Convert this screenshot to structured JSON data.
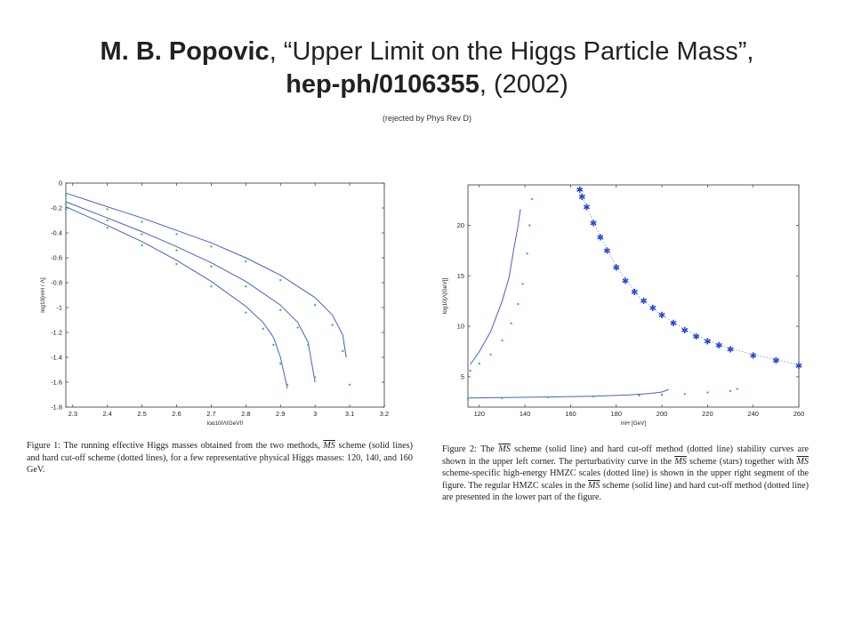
{
  "title": {
    "author": "M. B. Popovic",
    "sep1": ", “",
    "paper_title": "Upper Limit on the Higgs Particle Mass",
    "sep2": "”,",
    "arxiv_id": "hep-ph/0106355",
    "year": ", (2002)",
    "note": "(rejected by Phys Rev D)"
  },
  "figure1": {
    "caption_label": "Figure 1:",
    "caption_pre": "The running effective Higgs masses obtained from the two methods,",
    "caption_ms": "MS",
    "caption_post": "scheme (solid lines) and hard cut-off scheme (dotted lines), for a few representative physical Higgs masses: 120, 140, and 160 GeV.",
    "chart_data": {
      "type": "line",
      "xlabel": "log10[Λ[GeV]]",
      "ylabel": "log10[mH / Λ]",
      "xlim": [
        2.28,
        3.2
      ],
      "ylim": [
        -1.8,
        0
      ],
      "xticks": [
        "2.3",
        "2.4",
        "2.5",
        "2.6",
        "2.7",
        "2.8",
        "2.9",
        "3",
        "3.1",
        "3.2"
      ],
      "yticks": [
        "0",
        "-0.2",
        "-0.4",
        "-0.6",
        "-0.8",
        "-1",
        "-1.2",
        "-1.4",
        "-1.6",
        "-1.8"
      ],
      "grid": false,
      "series": [
        {
          "style": "solid",
          "color": "#4a5fc1",
          "x": [
            2.28,
            2.4,
            2.5,
            2.6,
            2.7,
            2.8,
            2.85,
            2.88,
            2.9,
            2.92
          ],
          "y": [
            -0.19,
            -0.34,
            -0.47,
            -0.62,
            -0.79,
            -0.99,
            -1.12,
            -1.24,
            -1.4,
            -1.65
          ]
        },
        {
          "style": "dotted",
          "color": "#2ecc40",
          "x": [
            2.28,
            2.4,
            2.5,
            2.6,
            2.7,
            2.8,
            2.85,
            2.88,
            2.9,
            2.92
          ],
          "y": [
            -0.21,
            -0.36,
            -0.5,
            -0.65,
            -0.83,
            -1.04,
            -1.17,
            -1.3,
            -1.45,
            -1.62
          ]
        },
        {
          "style": "solid",
          "color": "#4a5fc1",
          "x": [
            2.28,
            2.4,
            2.5,
            2.6,
            2.7,
            2.8,
            2.9,
            2.95,
            2.98,
            3.0
          ],
          "y": [
            -0.15,
            -0.28,
            -0.39,
            -0.51,
            -0.64,
            -0.79,
            -0.98,
            -1.12,
            -1.28,
            -1.6
          ]
        },
        {
          "style": "dotted",
          "color": "#2ecc40",
          "x": [
            2.28,
            2.4,
            2.5,
            2.6,
            2.7,
            2.8,
            2.9,
            2.95,
            2.98,
            3.0
          ],
          "y": [
            -0.17,
            -0.3,
            -0.41,
            -0.54,
            -0.67,
            -0.83,
            -1.02,
            -1.16,
            -1.3,
            -1.56
          ]
        },
        {
          "style": "solid",
          "color": "#4a5fc1",
          "x": [
            2.28,
            2.4,
            2.5,
            2.6,
            2.7,
            2.8,
            2.9,
            3.0,
            3.05,
            3.08,
            3.09
          ],
          "y": [
            -0.08,
            -0.19,
            -0.28,
            -0.38,
            -0.48,
            -0.6,
            -0.74,
            -0.92,
            -1.06,
            -1.22,
            -1.4
          ]
        },
        {
          "style": "dotted",
          "color": "#2ecc40",
          "x": [
            2.28,
            2.4,
            2.5,
            2.6,
            2.7,
            2.8,
            2.9,
            3.0,
            3.05,
            3.08,
            3.1
          ],
          "y": [
            -0.1,
            -0.21,
            -0.31,
            -0.41,
            -0.51,
            -0.63,
            -0.78,
            -0.98,
            -1.14,
            -1.35,
            -1.62
          ]
        }
      ]
    }
  },
  "figure2": {
    "caption_label": "Figure 2:",
    "caption_part1": "The",
    "caption_ms1": "MS",
    "caption_part2": "scheme (solid line) and hard cut-off method (dotted line) stability curves are shown in the upper left corner. The perturbativity curve in the",
    "caption_ms2": "MS",
    "caption_part3": "scheme (stars) together with",
    "caption_ms3": "MS",
    "caption_part4": "scheme-specific high-energy HMZC scales (dotted line) is shown in the upper right segment of the figure. The regular HMZC scales in the",
    "caption_ms4": "MS",
    "caption_part5": "scheme (solid line) and hard cut-off method (dotted line) are presented in the lower part of the figure.",
    "chart_data": {
      "type": "line",
      "xlabel": "mH [GeV]",
      "ylabel": "log10[Λ[GeV]]",
      "xlim": [
        115,
        260
      ],
      "ylim": [
        2,
        24
      ],
      "xticks": [
        "120",
        "140",
        "160",
        "180",
        "200",
        "220",
        "240",
        "260"
      ],
      "yticks": [
        "5",
        "10",
        "15",
        "20"
      ],
      "grid": false,
      "series": [
        {
          "style": "solid",
          "color": "#4a5fc1",
          "x": [
            116,
            120,
            125,
            130,
            133,
            135,
            137,
            138
          ],
          "y": [
            6.2,
            7.5,
            9.5,
            12.5,
            14.8,
            17.5,
            20,
            21.6
          ]
        },
        {
          "style": "dotted",
          "color": "#2ecc40",
          "x": [
            116,
            120,
            125,
            130,
            134,
            137,
            139,
            141,
            142,
            143
          ],
          "y": [
            5.6,
            6.3,
            7.2,
            8.6,
            10.3,
            12.2,
            14.2,
            17.2,
            20,
            22.6
          ]
        },
        {
          "style": "stars",
          "color": "#1f3fd6",
          "x": [
            164,
            165,
            167,
            170,
            173,
            176,
            180,
            184,
            188,
            192,
            196,
            200,
            205,
            210,
            215,
            220,
            225,
            230,
            240,
            250,
            260
          ],
          "y": [
            23.5,
            22.8,
            21.8,
            20.2,
            18.8,
            17.5,
            15.8,
            14.5,
            13.4,
            12.5,
            11.8,
            11.1,
            10.3,
            9.6,
            9.0,
            8.5,
            8.1,
            7.7,
            7.1,
            6.6,
            6.1
          ]
        },
        {
          "style": "dotted-blue",
          "color": "#7a8bd6",
          "x": [
            164,
            170,
            180,
            190,
            200,
            210,
            220,
            230,
            240,
            250,
            260
          ],
          "y": [
            23.4,
            20.3,
            15.9,
            12.9,
            11.1,
            9.7,
            8.6,
            7.8,
            7.2,
            6.7,
            6.2
          ]
        },
        {
          "style": "solid",
          "color": "#4a5fc1",
          "x": [
            115,
            130,
            150,
            170,
            185,
            195,
            200,
            203
          ],
          "y": [
            2.9,
            2.95,
            3.0,
            3.08,
            3.2,
            3.35,
            3.5,
            3.75
          ]
        },
        {
          "style": "dotted",
          "color": "#2ecc40",
          "x": [
            115,
            130,
            150,
            170,
            190,
            200,
            210,
            220,
            230,
            233
          ],
          "y": [
            2.85,
            2.9,
            2.98,
            3.05,
            3.15,
            3.22,
            3.3,
            3.45,
            3.6,
            3.8
          ]
        }
      ]
    }
  }
}
